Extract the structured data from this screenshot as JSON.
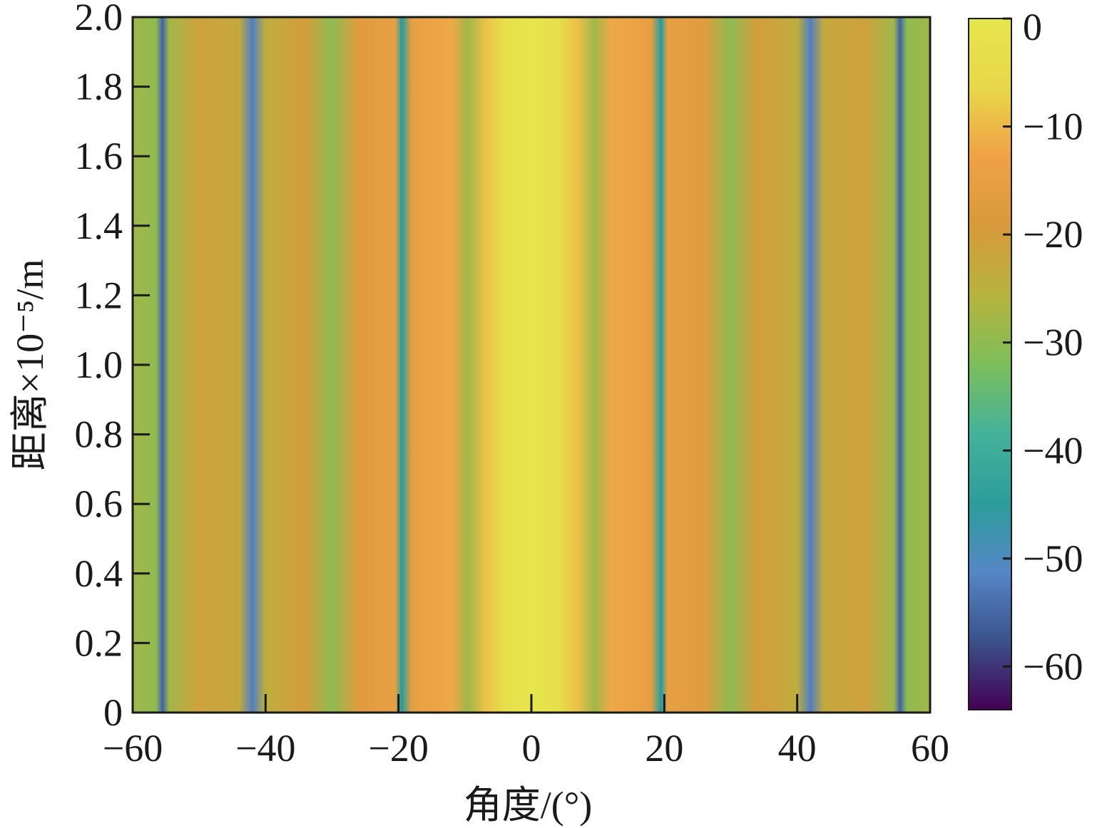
{
  "chart_data": {
    "type": "heatmap",
    "title": "",
    "xlabel": "角度/(°)",
    "ylabel": "距离×10⁻⁵/m",
    "xlim": [
      -60,
      60
    ],
    "ylim": [
      0,
      2.0
    ],
    "xticks": [
      -60,
      -40,
      -20,
      0,
      20,
      40,
      60
    ],
    "xtick_labels": [
      "−60",
      "−40",
      "−20",
      "0",
      "20",
      "40",
      "60"
    ],
    "yticks": [
      0,
      0.2,
      0.4,
      0.6,
      0.8,
      1.0,
      1.2,
      1.4,
      1.6,
      1.8,
      2.0
    ],
    "ytick_labels": [
      "0",
      "0.2",
      "0.4",
      "0.6",
      "0.8",
      "1.0",
      "1.2",
      "1.4",
      "1.6",
      "1.8",
      "2.0"
    ],
    "colorbar": {
      "range": [
        -64,
        0
      ],
      "ticks": [
        0,
        -10,
        -20,
        -30,
        -40,
        -50,
        -60
      ],
      "tick_labels": [
        "0",
        "−10",
        "−20",
        "−30",
        "−40",
        "−50",
        "−60"
      ],
      "colormap": [
        "#440154",
        "#3b528b",
        "#5587c6",
        "#2c9d9a",
        "#44b29a",
        "#7dbe5a",
        "#b7b33e",
        "#d79a3c",
        "#f0a146",
        "#e8d74a",
        "#e6e64c"
      ]
    },
    "description_profile": {
      "angle_deg": [
        -60,
        -56.5,
        -55.5,
        -54.5,
        -50,
        -44,
        -42,
        -40,
        -34,
        -30,
        -26,
        -20.5,
        -19.5,
        -18,
        -12,
        -9.5,
        -7,
        -4,
        0,
        4,
        7,
        9.5,
        12,
        18,
        19.5,
        20.5,
        26,
        30,
        34,
        40,
        42,
        44,
        50,
        54.5,
        55.5,
        56.5,
        60
      ],
      "power_db": [
        -28,
        -30,
        -55,
        -28,
        -21,
        -23,
        -52,
        -24,
        -20,
        -30,
        -17,
        -15,
        -45,
        -15,
        -12,
        -28,
        -9,
        -3,
        0,
        -3,
        -9,
        -28,
        -12,
        -15,
        -45,
        -15,
        -17,
        -30,
        -20,
        -24,
        -52,
        -23,
        -21,
        -28,
        -55,
        -30,
        -28
      ]
    }
  }
}
